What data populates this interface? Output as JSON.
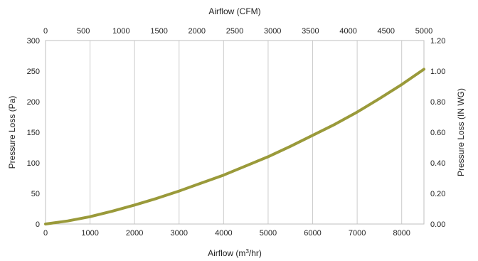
{
  "chart_data": {
    "type": "line",
    "title": "",
    "xlabel": "Airflow (m3/hr)",
    "xlabel_main": "Airflow (m",
    "xlabel_sup": "3",
    "xlabel_end": "/hr)",
    "x2label": "Airflow (CFM)",
    "ylabel": "Pressure Loss (Pa)",
    "y2label": "Pressure Loss (IN WG)",
    "xlim": [
      0,
      8500
    ],
    "x2lim": [
      0,
      5000
    ],
    "ylim": [
      0,
      300
    ],
    "y2lim": [
      0,
      1.2
    ],
    "x_ticks": [
      "0",
      "1000",
      "2000",
      "3000",
      "4000",
      "5000",
      "6000",
      "7000",
      "8000"
    ],
    "x2_ticks": [
      "0",
      "500",
      "1000",
      "1500",
      "2000",
      "2500",
      "3000",
      "3500",
      "4000",
      "4500",
      "5000"
    ],
    "y_ticks": [
      "0",
      "50",
      "100",
      "150",
      "200",
      "250",
      "300"
    ],
    "y2_ticks": [
      "0.00",
      "0.20",
      "0.40",
      "0.60",
      "0.80",
      "1.00",
      "1.20"
    ],
    "grid": "vertical",
    "line_color": "#9a9a3a",
    "series": [
      {
        "name": "",
        "x": [
          0,
          500,
          1000,
          1500,
          2000,
          2500,
          3000,
          3500,
          4000,
          4500,
          5000,
          5500,
          6000,
          6500,
          7000,
          7500,
          8000,
          8500
        ],
        "y": [
          0,
          5,
          12,
          21,
          31,
          42,
          54,
          67,
          80,
          95,
          110,
          127,
          145,
          163,
          183,
          205,
          228,
          253
        ]
      }
    ]
  }
}
